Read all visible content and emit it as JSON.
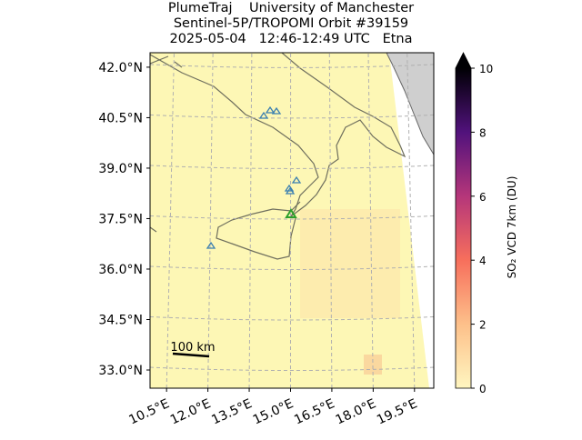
{
  "title": [
    "PlumeTraj    University of Manchester",
    "Sentinel-5P/TROPOMI Orbit #39159",
    "2025-05-04   12:46-12:49 UTC   Etna"
  ],
  "map": {
    "latlim": [
      32.46,
      42.43
    ],
    "lonlim": [
      9.9,
      20.2
    ],
    "latticks": [
      {
        "value": 33.0,
        "label": "33.0°N"
      },
      {
        "value": 34.5,
        "label": "34.5°N"
      },
      {
        "value": 36.0,
        "label": "36.0°N"
      },
      {
        "value": 37.5,
        "label": "37.5°N"
      },
      {
        "value": 39.0,
        "label": "39.0°N"
      },
      {
        "value": 40.5,
        "label": "40.5°N"
      },
      {
        "value": 42.0,
        "label": "42.0°N"
      }
    ],
    "lonticks": [
      {
        "value": 10.5,
        "label": "10.5°E"
      },
      {
        "value": 12.0,
        "label": "12.0°E"
      },
      {
        "value": 13.5,
        "label": "13.5°E"
      },
      {
        "value": 15.0,
        "label": "15.0°E"
      },
      {
        "value": 16.5,
        "label": "16.5°E"
      },
      {
        "value": 18.0,
        "label": "18.0°E"
      },
      {
        "value": 19.5,
        "label": "19.5°E"
      }
    ],
    "grid": true,
    "scale_bar": "100 km"
  },
  "colorbar": {
    "label": "SO₂ VCD 7km (DU)",
    "ylim": [
      0,
      10
    ],
    "yticks": [
      0,
      2,
      4,
      6,
      8,
      10
    ],
    "extend": "max"
  }
}
